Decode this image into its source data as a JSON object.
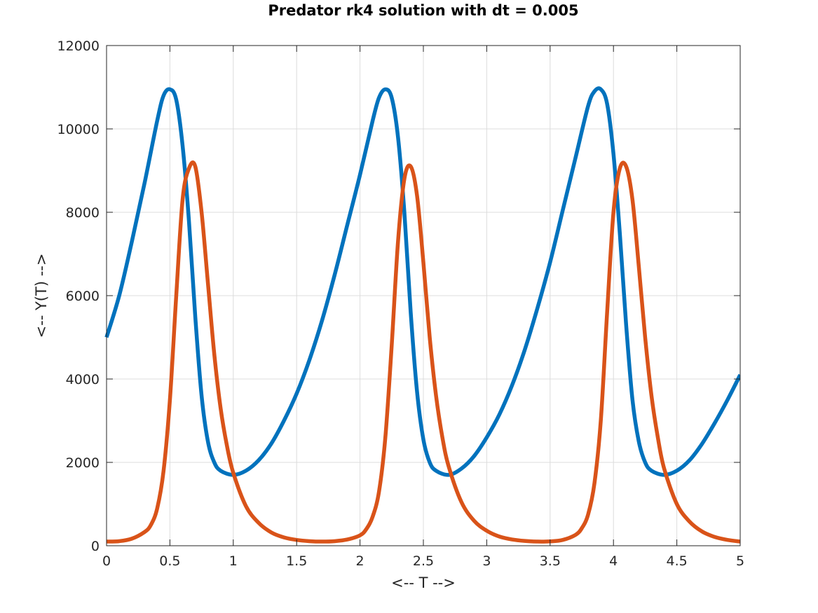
{
  "chart_data": {
    "type": "line",
    "title": "Predator rk4 solution with dt = 0.005",
    "xlabel": "<-- T -->",
    "ylabel": "<-- Y(T) -->",
    "xlim": [
      0,
      5
    ],
    "ylim": [
      0,
      12000
    ],
    "xticks": [
      "0",
      "0.5",
      "1",
      "1.5",
      "2",
      "2.5",
      "3",
      "3.5",
      "4",
      "4.5",
      "5"
    ],
    "yticks": [
      "0",
      "2000",
      "4000",
      "6000",
      "8000",
      "10000",
      "12000"
    ],
    "grid": true,
    "legend": "none",
    "series": [
      {
        "color": "#0072BD",
        "x": [
          0,
          0.1,
          0.2,
          0.3,
          0.4,
          0.45,
          0.5,
          0.55,
          0.6,
          0.65,
          0.7,
          0.75,
          0.8,
          0.85,
          0.9,
          1.0,
          1.1,
          1.2,
          1.3,
          1.4,
          1.5,
          1.6,
          1.7,
          1.8,
          1.9,
          2.0,
          2.1,
          2.15,
          2.2,
          2.25,
          2.3,
          2.35,
          2.4,
          2.45,
          2.5,
          2.55,
          2.6,
          2.7,
          2.8,
          2.9,
          3.0,
          3.1,
          3.2,
          3.3,
          3.4,
          3.5,
          3.6,
          3.7,
          3.8,
          3.85,
          3.9,
          3.95,
          4.0,
          4.05,
          4.1,
          4.15,
          4.2,
          4.25,
          4.3,
          4.4,
          4.5,
          4.6,
          4.7,
          4.8,
          4.9,
          5.0
        ],
        "y": [
          5000,
          6000,
          7300,
          8700,
          10200,
          10800,
          10950,
          10700,
          9600,
          7800,
          5500,
          3600,
          2500,
          2000,
          1800,
          1700,
          1800,
          2050,
          2450,
          3000,
          3650,
          4450,
          5400,
          6500,
          7700,
          8900,
          10200,
          10750,
          10950,
          10750,
          9800,
          8000,
          5600,
          3700,
          2550,
          2000,
          1800,
          1700,
          1850,
          2150,
          2600,
          3150,
          3850,
          4700,
          5700,
          6800,
          8050,
          9300,
          10550,
          10900,
          10950,
          10600,
          9400,
          7500,
          5300,
          3500,
          2500,
          2000,
          1800,
          1700,
          1800,
          2050,
          2450,
          2950,
          3500,
          4100
        ]
      },
      {
        "color": "#D95319",
        "x": [
          0,
          0.1,
          0.2,
          0.3,
          0.35,
          0.4,
          0.45,
          0.5,
          0.55,
          0.6,
          0.65,
          0.7,
          0.75,
          0.8,
          0.85,
          0.9,
          0.95,
          1.0,
          1.1,
          1.2,
          1.3,
          1.4,
          1.5,
          1.6,
          1.7,
          1.8,
          1.9,
          2.0,
          2.05,
          2.1,
          2.15,
          2.2,
          2.25,
          2.3,
          2.35,
          2.4,
          2.45,
          2.5,
          2.55,
          2.6,
          2.65,
          2.7,
          2.8,
          2.9,
          3.0,
          3.1,
          3.2,
          3.3,
          3.4,
          3.5,
          3.6,
          3.7,
          3.75,
          3.8,
          3.85,
          3.9,
          3.95,
          4.0,
          4.05,
          4.1,
          4.15,
          4.2,
          4.25,
          4.3,
          4.35,
          4.4,
          4.5,
          4.6,
          4.7,
          4.8,
          4.9,
          5.0
        ],
        "y": [
          100,
          110,
          170,
          330,
          500,
          900,
          1800,
          3500,
          6000,
          8300,
          9050,
          9100,
          8000,
          6300,
          4600,
          3300,
          2400,
          1750,
          950,
          550,
          320,
          200,
          140,
          110,
          100,
          110,
          150,
          250,
          400,
          700,
          1300,
          2600,
          4800,
          7300,
          8800,
          9100,
          8400,
          6800,
          5000,
          3600,
          2600,
          1900,
          1050,
          600,
          360,
          220,
          150,
          115,
          100,
          105,
          140,
          260,
          420,
          750,
          1500,
          3000,
          5600,
          8000,
          9050,
          9100,
          8300,
          6700,
          5000,
          3600,
          2600,
          1850,
          1000,
          580,
          340,
          210,
          140,
          100
        ]
      }
    ]
  }
}
